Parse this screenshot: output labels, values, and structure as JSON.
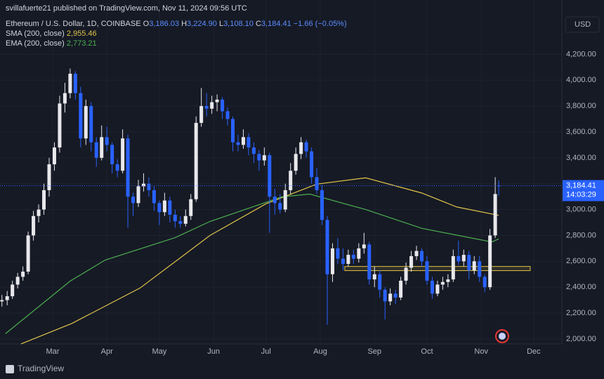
{
  "header": {
    "publisher": "svillafuerte21 published on TradingView.com, Nov 11, 2024 09:56 UTC",
    "currency": "USD",
    "brand": "TradingView"
  },
  "chart_data": {
    "type": "candlestick",
    "title": "Ethereum / U.S. Dollar, 1D, COINBASE",
    "ohlc_legend": [
      {
        "label": "O",
        "value": "3,186.03"
      },
      {
        "label": "H",
        "value": "3,224.90"
      },
      {
        "label": "L",
        "value": "3,108.10"
      },
      {
        "label": "C",
        "value": "3,184.41"
      }
    ],
    "change": "−1.66 (−0.05%)",
    "up_color": "#e8e8ec",
    "down_color": "#2962ff",
    "xlim": [
      -1.1,
      320.1
    ],
    "ylim": [
      1880,
      4620
    ],
    "xticks": [
      {
        "value": 29,
        "label": "Mar"
      },
      {
        "value": 60,
        "label": "Apr"
      },
      {
        "value": 90,
        "label": "May"
      },
      {
        "value": 121,
        "label": "Jun"
      },
      {
        "value": 151,
        "label": "Jul"
      },
      {
        "value": 182,
        "label": "Aug"
      },
      {
        "value": 213,
        "label": "Sep"
      },
      {
        "value": 243,
        "label": "Oct"
      },
      {
        "value": 274,
        "label": "Nov"
      },
      {
        "value": 304,
        "label": "Dec"
      }
    ],
    "yticks": [
      {
        "value": 2000,
        "label": "2,000.00"
      },
      {
        "value": 2200,
        "label": "2,200.00"
      },
      {
        "value": 2400,
        "label": "2,400.00"
      },
      {
        "value": 2600,
        "label": "2,600.00"
      },
      {
        "value": 2800,
        "label": "2,800.00"
      },
      {
        "value": 3000,
        "label": "3,000.00"
      },
      {
        "value": 3200,
        "label": "3,200.00"
      },
      {
        "value": 3400,
        "label": "3,400.00"
      },
      {
        "value": 3600,
        "label": "3,600.00"
      },
      {
        "value": 3800,
        "label": "3,800.00"
      },
      {
        "value": 4000,
        "label": "4,000.00"
      },
      {
        "value": 4200,
        "label": "4,200.00"
      }
    ],
    "grid": true,
    "candles": [
      [
        0,
        2290,
        2340,
        2250,
        2300
      ],
      [
        3,
        2300,
        2370,
        2260,
        2330
      ],
      [
        6,
        2330,
        2450,
        2310,
        2420
      ],
      [
        9,
        2420,
        2510,
        2390,
        2480
      ],
      [
        12,
        2480,
        2560,
        2450,
        2520
      ],
      [
        15,
        2520,
        2830,
        2500,
        2800
      ],
      [
        18,
        2800,
        2990,
        2760,
        2950
      ],
      [
        21,
        2950,
        3040,
        2900,
        3000
      ],
      [
        24,
        3000,
        3200,
        2960,
        3150
      ],
      [
        27,
        3150,
        3400,
        3100,
        3350
      ],
      [
        30,
        3350,
        3520,
        3300,
        3480
      ],
      [
        33,
        3480,
        3880,
        3440,
        3820
      ],
      [
        36,
        3820,
        3980,
        3750,
        3900
      ],
      [
        39,
        3900,
        4090,
        3860,
        4050
      ],
      [
        42,
        4050,
        4070,
        3850,
        3900
      ],
      [
        45,
        3900,
        3950,
        3480,
        3550
      ],
      [
        48,
        3550,
        3850,
        3500,
        3800
      ],
      [
        51,
        3800,
        3830,
        3450,
        3520
      ],
      [
        54,
        3520,
        3560,
        3330,
        3400
      ],
      [
        57,
        3400,
        3650,
        3380,
        3560
      ],
      [
        60,
        3560,
        3640,
        3450,
        3500
      ],
      [
        63,
        3500,
        3520,
        3280,
        3350
      ],
      [
        66,
        3350,
        3390,
        3250,
        3300
      ],
      [
        69,
        3300,
        3620,
        3280,
        3550
      ],
      [
        72,
        3550,
        3580,
        2860,
        3100
      ],
      [
        75,
        3100,
        3130,
        2950,
        3050
      ],
      [
        78,
        3050,
        3230,
        3020,
        3180
      ],
      [
        81,
        3180,
        3280,
        3140,
        3200
      ],
      [
        84,
        3200,
        3250,
        3100,
        3150
      ],
      [
        87,
        3150,
        3180,
        2990,
        3050
      ],
      [
        90,
        3050,
        3070,
        2880,
        2980
      ],
      [
        93,
        2980,
        3130,
        2950,
        3070
      ],
      [
        96,
        3070,
        3100,
        2900,
        2960
      ],
      [
        99,
        2960,
        3000,
        2860,
        2910
      ],
      [
        102,
        2910,
        2950,
        2860,
        2890
      ],
      [
        105,
        2890,
        3000,
        2870,
        2950
      ],
      [
        108,
        2950,
        3120,
        2920,
        3080
      ],
      [
        111,
        3080,
        3720,
        3060,
        3670
      ],
      [
        114,
        3670,
        3940,
        3640,
        3800
      ],
      [
        117,
        3800,
        3900,
        3720,
        3780
      ],
      [
        120,
        3780,
        3880,
        3740,
        3830
      ],
      [
        123,
        3830,
        3890,
        3760,
        3850
      ],
      [
        126,
        3850,
        3870,
        3700,
        3760
      ],
      [
        129,
        3760,
        3790,
        3650,
        3700
      ],
      [
        132,
        3700,
        3720,
        3450,
        3520
      ],
      [
        135,
        3520,
        3580,
        3450,
        3500
      ],
      [
        138,
        3500,
        3620,
        3470,
        3560
      ],
      [
        141,
        3560,
        3590,
        3420,
        3480
      ],
      [
        144,
        3480,
        3520,
        3360,
        3430
      ],
      [
        147,
        3430,
        3460,
        3300,
        3380
      ],
      [
        150,
        3380,
        3480,
        3340,
        3420
      ],
      [
        153,
        3420,
        3440,
        2820,
        3100
      ],
      [
        156,
        3100,
        3160,
        2960,
        3050
      ],
      [
        159,
        3050,
        3120,
        2970,
        3000
      ],
      [
        162,
        3000,
        3200,
        2980,
        3150
      ],
      [
        165,
        3150,
        3360,
        3120,
        3300
      ],
      [
        168,
        3300,
        3480,
        3270,
        3430
      ],
      [
        171,
        3430,
        3560,
        3390,
        3520
      ],
      [
        174,
        3520,
        3540,
        3400,
        3450
      ],
      [
        177,
        3450,
        3480,
        3200,
        3250
      ],
      [
        180,
        3250,
        3320,
        3120,
        3150
      ],
      [
        183,
        3150,
        3190,
        2880,
        2920
      ],
      [
        186,
        2920,
        2950,
        2110,
        2500
      ],
      [
        189,
        2500,
        2740,
        2440,
        2700
      ],
      [
        192,
        2700,
        2780,
        2580,
        2620
      ],
      [
        195,
        2620,
        2700,
        2530,
        2580
      ],
      [
        198,
        2580,
        2690,
        2560,
        2650
      ],
      [
        201,
        2650,
        2690,
        2580,
        2620
      ],
      [
        204,
        2620,
        2740,
        2590,
        2700
      ],
      [
        207,
        2700,
        2820,
        2660,
        2730
      ],
      [
        210,
        2730,
        2750,
        2420,
        2460
      ],
      [
        213,
        2460,
        2560,
        2400,
        2500
      ],
      [
        216,
        2500,
        2530,
        2320,
        2380
      ],
      [
        219,
        2380,
        2400,
        2150,
        2290
      ],
      [
        222,
        2290,
        2390,
        2260,
        2350
      ],
      [
        225,
        2350,
        2380,
        2270,
        2320
      ],
      [
        228,
        2320,
        2480,
        2300,
        2450
      ],
      [
        231,
        2450,
        2590,
        2420,
        2550
      ],
      [
        234,
        2550,
        2680,
        2520,
        2640
      ],
      [
        237,
        2640,
        2720,
        2610,
        2680
      ],
      [
        240,
        2680,
        2700,
        2560,
        2600
      ],
      [
        243,
        2600,
        2640,
        2420,
        2450
      ],
      [
        246,
        2450,
        2480,
        2310,
        2350
      ],
      [
        249,
        2350,
        2450,
        2330,
        2420
      ],
      [
        252,
        2420,
        2480,
        2380,
        2440
      ],
      [
        255,
        2440,
        2500,
        2400,
        2460
      ],
      [
        258,
        2460,
        2690,
        2440,
        2640
      ],
      [
        261,
        2640,
        2760,
        2570,
        2600
      ],
      [
        264,
        2600,
        2690,
        2560,
        2650
      ],
      [
        267,
        2650,
        2680,
        2460,
        2530
      ],
      [
        270,
        2530,
        2640,
        2500,
        2600
      ],
      [
        273,
        2600,
        2640,
        2440,
        2480
      ],
      [
        276,
        2480,
        2500,
        2360,
        2400
      ],
      [
        279,
        2400,
        2850,
        2380,
        2800
      ],
      [
        282,
        2800,
        3250,
        2780,
        3120
      ],
      [
        284,
        3186.03,
        3224.9,
        3108.1,
        3184.41
      ]
    ],
    "sma": {
      "name": "SMA (200, close)",
      "value_label": "2,955.46",
      "color": "#e0c44a",
      "x": [
        11,
        40,
        79,
        119,
        151,
        180,
        208,
        240,
        260,
        284
      ],
      "values": [
        1962,
        2120,
        2394,
        2800,
        3045,
        3197,
        3245,
        3128,
        3020,
        2955.46
      ]
    },
    "ema": {
      "name": "EMA (200, close)",
      "value_label": "2,773.21",
      "color": "#4caf50",
      "x": [
        2,
        39,
        59,
        99,
        119,
        160,
        176,
        208,
        240,
        280,
        284
      ],
      "values": [
        2040,
        2447,
        2610,
        2783,
        2908,
        3098,
        3120,
        3000,
        2855,
        2750,
        2773.21
      ]
    },
    "zone": {
      "x": [
        196,
        302
      ],
      "y": [
        2528,
        2560
      ],
      "color": "#e0c44a"
    },
    "last_price": 3184.41,
    "last_price_label": "3,184.41",
    "countdown": "14:03:29"
  }
}
